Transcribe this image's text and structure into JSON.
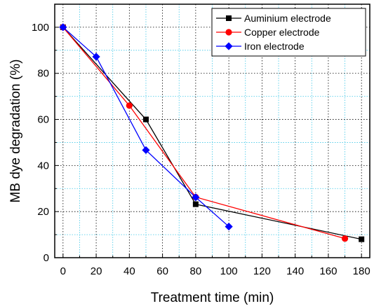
{
  "chart_data": {
    "type": "line",
    "title": "",
    "xlabel": "Treatment time (min)",
    "ylabel": "MB dye degradation (%)",
    "xlim": [
      -5,
      185
    ],
    "ylim": [
      0,
      110
    ],
    "xticks": [
      0,
      20,
      40,
      60,
      80,
      100,
      120,
      140,
      160,
      180
    ],
    "yticks": [
      0,
      20,
      40,
      60,
      80,
      100
    ],
    "grid": true,
    "legend_position": "top-right",
    "series": [
      {
        "name": "Auminium electrode",
        "color": "#000000",
        "marker": "square",
        "x": [
          0,
          50,
          80,
          180
        ],
        "y": [
          100,
          60,
          23.2,
          8
        ]
      },
      {
        "name": "Copper electrode",
        "color": "#ff0000",
        "marker": "circle",
        "x": [
          0,
          40,
          80,
          170
        ],
        "y": [
          100,
          66,
          26.3,
          8.3
        ]
      },
      {
        "name": "Iron electrode",
        "color": "#0000ff",
        "marker": "diamond",
        "x": [
          0,
          20,
          50,
          80,
          100
        ],
        "y": [
          100,
          87.2,
          46.7,
          26.2,
          13.5
        ]
      }
    ]
  }
}
